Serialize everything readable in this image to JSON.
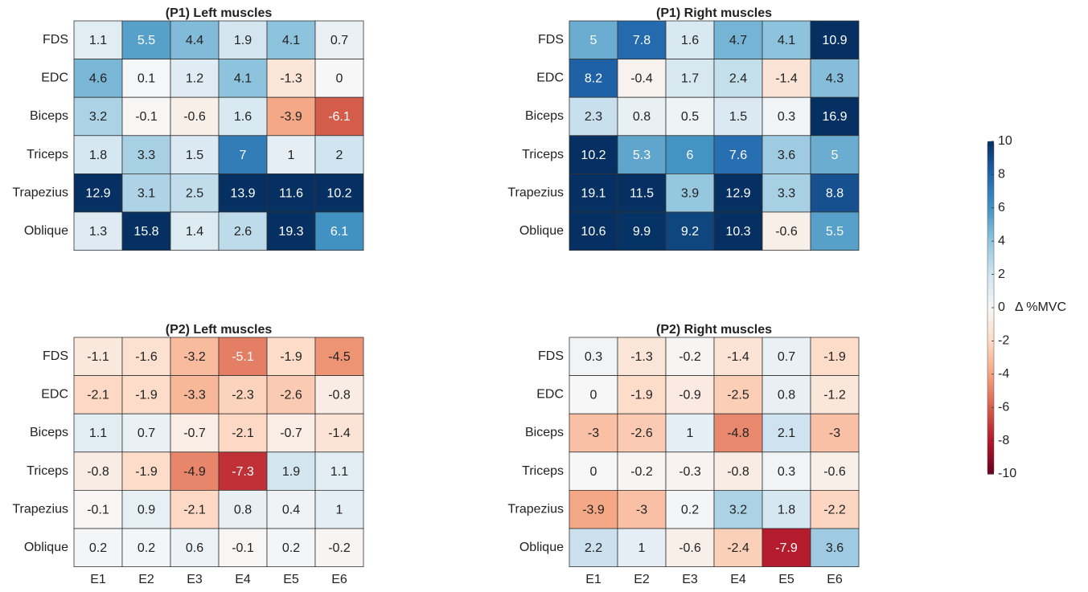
{
  "chart_data": [
    {
      "type": "heatmap",
      "title": "(P1) Left muscles",
      "rows": [
        "FDS",
        "EDC",
        "Biceps",
        "Triceps",
        "Trapezius",
        "Oblique"
      ],
      "values": [
        [
          1.1,
          5.5,
          4.4,
          1.9,
          4.1,
          0.7
        ],
        [
          4.6,
          0.1,
          1.2,
          4.1,
          -1.3,
          0
        ],
        [
          3.2,
          -0.1,
          -0.6,
          1.6,
          -3.9,
          -6.1
        ],
        [
          1.8,
          3.3,
          1.5,
          7,
          1,
          2
        ],
        [
          12.9,
          3.1,
          2.5,
          13.9,
          11.6,
          10.2
        ],
        [
          1.3,
          15.8,
          1.4,
          2.6,
          19.3,
          6.1
        ]
      ]
    },
    {
      "type": "heatmap",
      "title": "(P1) Right muscles",
      "rows": [
        "FDS",
        "EDC",
        "Biceps",
        "Triceps",
        "Trapezius",
        "Oblique"
      ],
      "values": [
        [
          5,
          7.8,
          1.6,
          4.7,
          4.1,
          10.9
        ],
        [
          8.2,
          -0.4,
          1.7,
          2.4,
          -1.4,
          4.3
        ],
        [
          2.3,
          0.8,
          0.5,
          1.5,
          0.3,
          16.9
        ],
        [
          10.2,
          5.3,
          6,
          7.6,
          3.6,
          5
        ],
        [
          19.1,
          11.5,
          3.9,
          12.9,
          3.3,
          8.8
        ],
        [
          10.6,
          9.9,
          9.2,
          10.3,
          -0.6,
          5.5
        ]
      ]
    },
    {
      "type": "heatmap",
      "title": "(P2) Left muscles",
      "rows": [
        "FDS",
        "EDC",
        "Biceps",
        "Triceps",
        "Trapezius",
        "Oblique"
      ],
      "categories": [
        "E1",
        "E2",
        "E3",
        "E4",
        "E5",
        "E6"
      ],
      "values": [
        [
          -1.1,
          -1.6,
          -3.2,
          -5.1,
          -1.9,
          -4.5
        ],
        [
          -2.1,
          -1.9,
          -3.3,
          -2.3,
          -2.6,
          -0.8
        ],
        [
          1.1,
          0.7,
          -0.7,
          -2.1,
          -0.7,
          -1.4
        ],
        [
          -0.8,
          -1.9,
          -4.9,
          -7.3,
          1.9,
          1.1
        ],
        [
          -0.1,
          0.9,
          -2.1,
          0.8,
          0.4,
          1
        ],
        [
          0.2,
          0.2,
          0.6,
          -0.1,
          0.2,
          -0.2
        ]
      ]
    },
    {
      "type": "heatmap",
      "title": "(P2) Right muscles",
      "rows": [
        "FDS",
        "EDC",
        "Biceps",
        "Triceps",
        "Trapezius",
        "Oblique"
      ],
      "categories": [
        "E1",
        "E2",
        "E3",
        "E4",
        "E5",
        "E6"
      ],
      "values": [
        [
          0.3,
          -1.3,
          -0.2,
          -1.4,
          0.7,
          -1.9
        ],
        [
          0,
          -1.9,
          -0.9,
          -2.5,
          0.8,
          -1.2
        ],
        [
          -3,
          -2.6,
          1,
          -4.8,
          2.1,
          -3
        ],
        [
          0,
          -0.2,
          -0.3,
          -0.8,
          0.3,
          -0.6
        ],
        [
          -3.9,
          -3,
          0.2,
          3.2,
          1.8,
          -2.2
        ],
        [
          2.2,
          1,
          -0.6,
          -2.4,
          -7.9,
          3.6
        ]
      ]
    }
  ],
  "colorbar": {
    "label": "Δ %MVC",
    "lim": [
      -10,
      10
    ],
    "ticks": [
      -10,
      -8,
      -6,
      -4,
      -2,
      0,
      2,
      4,
      6,
      8,
      10
    ],
    "colormap": [
      "#67001f",
      "#b2182b",
      "#d6604d",
      "#f4a582",
      "#fddbc7",
      "#f7f7f7",
      "#d1e5f0",
      "#92c5de",
      "#4393c3",
      "#2166ac",
      "#053061"
    ]
  }
}
